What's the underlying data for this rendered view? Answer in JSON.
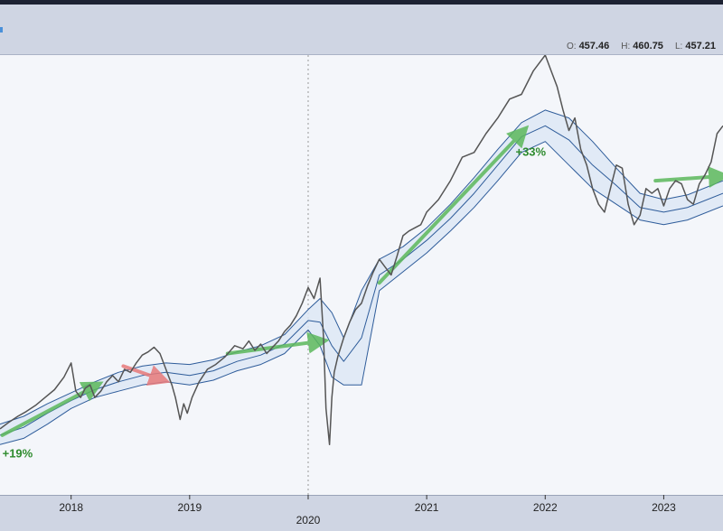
{
  "ohlc": {
    "open_label": "O:",
    "open": "457.46",
    "high_label": "H:",
    "high": "460.75",
    "low_label": "L:",
    "low": "457.21"
  },
  "colors": {
    "price": "#555555",
    "band_fill": "#dde8f5",
    "band_line": "#2e5c9a",
    "up_arrow": "#5cb85c",
    "down_arrow": "#e87a7a",
    "annotation_text": "#2e8b2e",
    "background": "#f4f6fa"
  },
  "chart_data": {
    "type": "line",
    "title": "",
    "xlabel": "",
    "ylabel": "",
    "x_tick_labels": [
      "2018",
      "2019",
      "2020",
      "2021",
      "2022",
      "2023"
    ],
    "grid": false,
    "series": [
      {
        "x": [
          2017.4,
          2017.47,
          2017.55,
          2017.62,
          2017.7,
          2017.78,
          2017.86,
          2017.94,
          2018.0,
          2018.04,
          2018.08,
          2018.12,
          2018.16,
          2018.2,
          2018.25,
          2018.3,
          2018.35,
          2018.4,
          2018.45,
          2018.5,
          2018.55,
          2018.6,
          2018.65,
          2018.7,
          2018.75,
          2018.8,
          2018.85,
          2018.88,
          2018.92,
          2018.95,
          2018.98,
          2019.02,
          2019.08,
          2019.15,
          2019.22,
          2019.3,
          2019.38,
          2019.45,
          2019.5,
          2019.55,
          2019.6,
          2019.65,
          2019.7,
          2019.75,
          2019.8,
          2019.85,
          2019.9,
          2019.95,
          2020.0,
          2020.05,
          2020.1,
          2020.13,
          2020.15,
          2020.18,
          2020.2,
          2020.22,
          2020.25,
          2020.3,
          2020.35,
          2020.4,
          2020.45,
          2020.5,
          2020.55,
          2020.6,
          2020.65,
          2020.7,
          2020.75,
          2020.8,
          2020.85,
          2020.9,
          2020.95,
          2021.0,
          2021.1,
          2021.2,
          2021.3,
          2021.4,
          2021.5,
          2021.6,
          2021.7,
          2021.8,
          2021.9,
          2022.0,
          2022.05,
          2022.1,
          2022.15,
          2022.2,
          2022.25,
          2022.3,
          2022.35,
          2022.4,
          2022.45,
          2022.5,
          2022.55,
          2022.6,
          2022.65,
          2022.7,
          2022.75,
          2022.8,
          2022.85,
          2022.9,
          2022.95,
          2023.0,
          2023.05,
          2023.1,
          2023.15,
          2023.2,
          2023.25,
          2023.3,
          2023.35,
          2023.4,
          2023.45,
          2023.5
        ],
        "y": [
          242,
          246,
          250,
          253,
          257,
          262,
          267,
          275,
          284,
          266,
          262,
          268,
          270,
          262,
          266,
          272,
          276,
          272,
          280,
          278,
          284,
          289,
          291,
          294,
          290,
          280,
          270,
          262,
          248,
          258,
          252,
          262,
          272,
          280,
          283,
          288,
          295,
          293,
          298,
          292,
          296,
          290,
          294,
          298,
          304,
          308,
          314,
          322,
          332,
          325,
          338,
          300,
          255,
          232,
          262,
          278,
          288,
          300,
          310,
          318,
          322,
          333,
          342,
          350,
          345,
          340,
          352,
          365,
          368,
          370,
          372,
          380,
          388,
          400,
          415,
          418,
          430,
          440,
          452,
          455,
          470,
          480,
          470,
          460,
          445,
          432,
          440,
          420,
          410,
          395,
          385,
          380,
          395,
          410,
          408,
          385,
          372,
          378,
          395,
          392,
          395,
          384,
          395,
          400,
          398,
          388,
          385,
          398,
          404,
          412,
          430,
          435
        ],
        "name": ""
      },
      {
        "x": [
          2017.4,
          2017.6,
          2017.8,
          2018.0,
          2018.2,
          2018.4,
          2018.6,
          2018.8,
          2019.0,
          2019.2,
          2019.4,
          2019.6,
          2019.8,
          2020.0,
          2020.1,
          2020.2,
          2020.3,
          2020.45,
          2020.6,
          2020.8,
          2021.0,
          2021.2,
          2021.4,
          2021.6,
          2021.8,
          2022.0,
          2022.2,
          2022.4,
          2022.6,
          2022.8,
          2023.0,
          2023.2,
          2023.5
        ],
        "y": [
          245,
          250,
          258,
          265,
          272,
          278,
          282,
          284,
          283,
          286,
          291,
          295,
          302,
          318,
          325,
          316,
          300,
          330,
          350,
          358,
          370,
          385,
          402,
          420,
          437,
          445,
          440,
          425,
          408,
          392,
          388,
          391,
          400
        ],
        "name": ""
      },
      {
        "x": [
          2017.4,
          2017.6,
          2017.8,
          2018.0,
          2018.2,
          2018.4,
          2018.6,
          2018.8,
          2019.0,
          2019.2,
          2019.4,
          2019.6,
          2019.8,
          2020.0,
          2020.1,
          2020.2,
          2020.3,
          2020.45,
          2020.6,
          2020.8,
          2021.0,
          2021.2,
          2021.4,
          2021.6,
          2021.8,
          2022.0,
          2022.2,
          2022.4,
          2022.6,
          2022.8,
          2023.0,
          2023.2,
          2023.5
        ],
        "y": [
          238,
          243,
          252,
          260,
          267,
          272,
          276,
          278,
          276,
          279,
          285,
          289,
          296,
          311,
          310,
          295,
          285,
          300,
          340,
          350,
          362,
          376,
          392,
          410,
          428,
          435,
          426,
          410,
          397,
          383,
          380,
          383,
          392
        ],
        "name": ""
      },
      {
        "x": [
          2017.4,
          2017.6,
          2017.8,
          2018.0,
          2018.2,
          2018.4,
          2018.6,
          2018.8,
          2019.0,
          2019.2,
          2019.4,
          2019.6,
          2019.8,
          2020.0,
          2020.1,
          2020.2,
          2020.3,
          2020.45,
          2020.6,
          2020.8,
          2021.0,
          2021.2,
          2021.4,
          2021.6,
          2021.8,
          2022.0,
          2022.2,
          2022.4,
          2022.6,
          2022.8,
          2023.0,
          2023.2,
          2023.5
        ],
        "y": [
          232,
          236,
          245,
          255,
          262,
          266,
          270,
          272,
          270,
          273,
          279,
          283,
          290,
          305,
          295,
          275,
          270,
          270,
          330,
          342,
          354,
          368,
          383,
          400,
          418,
          425,
          410,
          395,
          385,
          375,
          372,
          375,
          384
        ],
        "name": ""
      }
    ],
    "ylim": [
      200,
      480
    ],
    "xlim": [
      2017.4,
      2023.5
    ],
    "annotations": [
      {
        "type": "arrow",
        "color": "up",
        "x1": 2017.42,
        "y1": 238,
        "x2": 2018.22,
        "y2": 270,
        "text": "+19%",
        "tx": 2017.42,
        "ty": 224
      },
      {
        "type": "arrow",
        "color": "down",
        "x1": 2018.44,
        "y1": 282,
        "x2": 2018.78,
        "y2": 273,
        "text": ""
      },
      {
        "type": "arrow",
        "color": "up",
        "x1": 2019.32,
        "y1": 290,
        "x2": 2020.12,
        "y2": 298,
        "text": ""
      },
      {
        "type": "arrow",
        "color": "up",
        "x1": 2020.6,
        "y1": 335,
        "x2": 2021.82,
        "y2": 432,
        "text": "+33%",
        "tx": 2021.75,
        "ty": 416
      },
      {
        "type": "arrow",
        "color": "up",
        "x1": 2022.93,
        "y1": 400,
        "x2": 2023.5,
        "y2": 403,
        "text": ""
      }
    ]
  }
}
